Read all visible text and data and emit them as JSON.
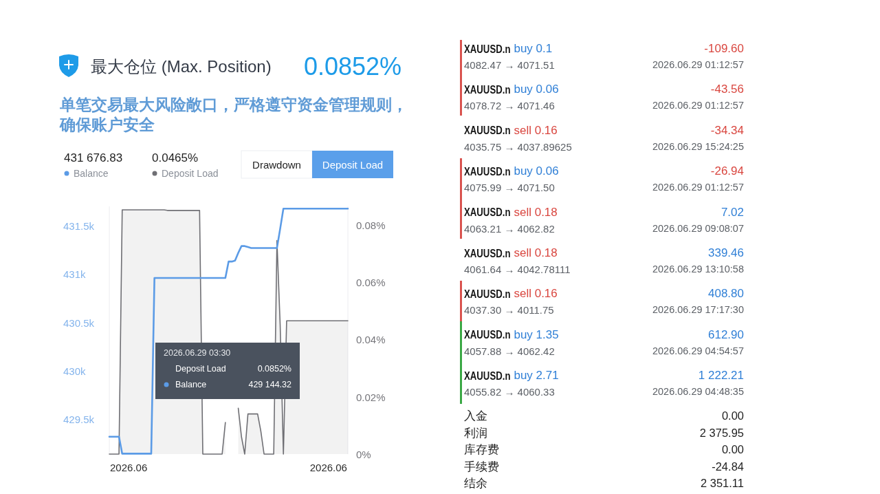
{
  "chart_data": [
    {
      "type": "line",
      "title": "最大仓位 (Max. Position)",
      "subtitle": "单笔交易最大风险敞口，严格遵守资金管理规则，确保账户安全",
      "categories": [
        null,
        null,
        null,
        null,
        null,
        null,
        "2026.06",
        null,
        null,
        null,
        null,
        null,
        null,
        null,
        null,
        null,
        null,
        null,
        null,
        null,
        null,
        null,
        null,
        null,
        null,
        null,
        null,
        null,
        null,
        null,
        null,
        null,
        null,
        null,
        null,
        null,
        null,
        null,
        null,
        null,
        null,
        null,
        null,
        null,
        null,
        null,
        null,
        null,
        null,
        null,
        null,
        null,
        null,
        null,
        null,
        null,
        null,
        null,
        null,
        null,
        null,
        null,
        null,
        null,
        null,
        null,
        null,
        null,
        "2026.06",
        null,
        null,
        null,
        null,
        null,
        null
      ],
      "series": [
        {
          "name": "Balance",
          "color": "#5b9be6",
          "values": [
            429320,
            429320,
            429320,
            429320,
            429144.32,
            429144.32,
            429144.32,
            429144.32,
            429144.32,
            429144.32,
            429144.32,
            429144.32,
            429144.32,
            429144.32,
            430960,
            430960,
            430960,
            430960,
            430960,
            430960,
            430960,
            430960,
            430960,
            430960,
            430960,
            430960,
            430960,
            430960,
            430960,
            430960,
            430960,
            430960,
            430960,
            430960,
            430960,
            430960,
            430960,
            431130,
            431130,
            431140,
            431220,
            431290,
            431290,
            431280,
            431270,
            431270,
            431270,
            431270,
            431270,
            431270,
            431270,
            431270,
            431270,
            431470,
            431676.83,
            431676.83,
            431676.83,
            431676.83,
            431676.83,
            431676.83,
            431676.83,
            431676.83,
            431676.83,
            431676.83,
            431676.83,
            431676.83,
            431676.83,
            431676.83,
            431676.83,
            431676.83,
            431676.83,
            431676.83,
            431676.83,
            431676.83,
            431676.83
          ]
        },
        {
          "name": "Deposit Load",
          "type": "area",
          "axis": "y2",
          "color": "#6f6f74",
          "values": [
            0,
            0,
            0,
            0,
            0.0852,
            0.0852,
            0.0852,
            0.0852,
            0.0852,
            0.0852,
            0.0852,
            0.0852,
            0.0852,
            0.0852,
            0.0852,
            0.0852,
            0.0852,
            0.0852,
            0.085,
            0.085,
            0.085,
            0.085,
            0.085,
            0.085,
            0.085,
            0.085,
            0.085,
            0.085,
            0.085,
            0,
            0,
            0,
            0,
            0,
            0,
            0,
            0.011,
            null,
            null,
            null,
            0.016,
            0.006,
            0,
            0.014,
            0.014,
            0.014,
            0.014,
            0.008,
            0,
            0,
            0,
            0,
            0.0745,
            0.045,
            0,
            0.0465,
            0.0465,
            0.0465,
            0.0465,
            0.0465,
            0.0465,
            0.0465,
            0.0465,
            0.0465,
            0.0465,
            0.0465,
            0.0465,
            0.0465,
            0.0465,
            0.0465,
            0.0465,
            0.0465,
            0.0465,
            0.0465,
            0.0465
          ]
        }
      ],
      "ylim": [
        429140,
        431700
      ],
      "yticks": [
        {
          "value": 429500,
          "label": "429.5k"
        },
        {
          "value": 430000,
          "label": "430k"
        },
        {
          "value": 430500,
          "label": "430.5k"
        },
        {
          "value": 431000,
          "label": "431k"
        },
        {
          "value": 431500,
          "label": "431.5k"
        }
      ],
      "y2lim": [
        0,
        0.0864
      ],
      "y2ticks": [
        {
          "value": 0,
          "label": "0%"
        },
        {
          "value": 0.02,
          "label": "0.02%"
        },
        {
          "value": 0.04,
          "label": "0.04%"
        },
        {
          "value": 0.06,
          "label": "0.06%"
        },
        {
          "value": 0.08,
          "label": "0.08%"
        }
      ],
      "legend": "top left",
      "annotations": [
        "0.0852%",
        "431 676.83",
        "0.0465%",
        "Drawdown",
        "Deposit Load",
        "2026.06.29 03:30",
        "Deposit Load",
        "0.0852%",
        "Balance",
        "429 144.32"
      ]
    },
    {
      "type": "other",
      "annotations": [
        "XAUUSD.n",
        "buy 0.1",
        "4082.47 → 4071.51",
        "-109.60",
        "2026.06.29 01:12:57",
        "XAUUSD.n",
        "buy 0.06",
        "4078.72 → 4071.46",
        "-43.56",
        "2026.06.29 01:12:57",
        "XAUUSD.n",
        "sell 0.16",
        "4035.75 → 4037.89625",
        "-34.34",
        "2026.06.29 15:24:25",
        "XAUUSD.n",
        "buy 0.06",
        "4075.99 → 4071.50",
        "-26.94",
        "2026.06.29 01:12:57",
        "XAUUSD.n",
        "sell 0.18",
        "4063.21 → 4062.82",
        "7.02",
        "2026.06.29 09:08:07",
        "XAUUSD.n",
        "sell 0.18",
        "4061.64 → 4042.78111",
        "339.46",
        "2026.06.29 13:10:58",
        "XAUUSD.n",
        "sell 0.16",
        "4037.30 → 4011.75",
        "408.80",
        "2026.06.29 17:17:30",
        "XAUUSD.n",
        "buy 1.35",
        "4057.88 → 4062.42",
        "612.90",
        "2026.06.29 04:54:57",
        "XAUUSD.n",
        "buy 2.71",
        "4055.82 → 4060.33",
        "1 222.21",
        "2026.06.29 04:48:35"
      ],
      "colors": [
        "#151515",
        "#2f7fd6",
        "#5c6066",
        "#d9463f",
        "#5c6066",
        "#151515",
        "#2f7fd6",
        "#5c6066",
        "#d9463f",
        "#5c6066",
        "#151515",
        "#d9463f",
        "#5c6066",
        "#d9463f",
        "#5c6066",
        "#151515",
        "#2f7fd6",
        "#5c6066",
        "#d9463f",
        "#5c6066",
        "#151515",
        "#d9463f",
        "#5c6066",
        "#2f7fd6",
        "#5c6066",
        "#151515",
        "#d9463f",
        "#5c6066",
        "#2f7fd6",
        "#5c6066",
        "#151515",
        "#d9463f",
        "#5c6066",
        "#2f7fd6",
        "#5c6066",
        "#151515",
        "#2f7fd6",
        "#5c6066",
        "#2f7fd6",
        "#5c6066",
        "#151515",
        "#2f7fd6",
        "#5c6066",
        "#2f7fd6",
        "#5c6066"
      ]
    },
    {
      "type": "other",
      "annotations": [
        "入金",
        "0.00",
        "利润",
        "2 375.95",
        "库存费",
        "0.00",
        "手续费",
        "-24.84",
        "结余",
        "2 351.11"
      ]
    }
  ]
}
